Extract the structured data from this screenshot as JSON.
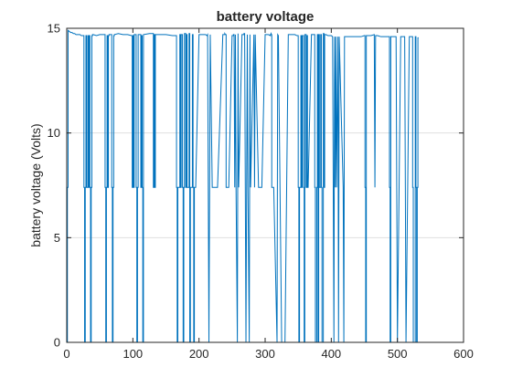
{
  "chart_data": {
    "type": "line",
    "title": "battery voltage",
    "xlabel": "",
    "ylabel": "battery voltage (Volts)",
    "xlim": [
      0,
      600
    ],
    "ylim": [
      0,
      15
    ],
    "xticks": [
      0,
      100,
      200,
      300,
      400,
      500,
      600
    ],
    "yticks": [
      0,
      5,
      10,
      15
    ],
    "grid": true,
    "series_color": "#0072bd",
    "grid_color": "#dfdfdf",
    "axis_color": "#262626",
    "series": [
      {
        "x": [
          0,
          1,
          1,
          2,
          2,
          4,
          6,
          8,
          10,
          12,
          14,
          16,
          18,
          20,
          22,
          24,
          26,
          26,
          27,
          27,
          28,
          28,
          29,
          29,
          30,
          30,
          31,
          32,
          32,
          33,
          33,
          34,
          34,
          35,
          35,
          36,
          36,
          37,
          37,
          38,
          38,
          39,
          39,
          40,
          45,
          50,
          55,
          58,
          58,
          59,
          59,
          60,
          60,
          61,
          61,
          62,
          62,
          63,
          63,
          64,
          64,
          68,
          68,
          69,
          69,
          70,
          70,
          71,
          71,
          72,
          72,
          78,
          85,
          92,
          98,
          99,
          99,
          100,
          100,
          101,
          101,
          102,
          102,
          105,
          105,
          106,
          106,
          107,
          107,
          108,
          108,
          112,
          112,
          113,
          113,
          114,
          114,
          115,
          115,
          116,
          116,
          125,
          130,
          131,
          131,
          132,
          132,
          133,
          133,
          134,
          134,
          140,
          150,
          160,
          165,
          166,
          166,
          167,
          167,
          168,
          168,
          171,
          171,
          172,
          172,
          173,
          173,
          175,
          175,
          176,
          176,
          177,
          177,
          178,
          178,
          180,
          180,
          181,
          181,
          182,
          182,
          185,
          185,
          186,
          186,
          187,
          187,
          190,
          190,
          191,
          191,
          192,
          192,
          193,
          193,
          195,
          200,
          205,
          210,
          212,
          212,
          213,
          213,
          214,
          214,
          215,
          215,
          216,
          216,
          217,
          217,
          220,
          228,
          236,
          239,
          239,
          240,
          240,
          241,
          241,
          245,
          250,
          252,
          252,
          253,
          253,
          254,
          254,
          255,
          255,
          256,
          256,
          258,
          258,
          259,
          259,
          260,
          260,
          265,
          268,
          268,
          269,
          269,
          270,
          270,
          271,
          271,
          272,
          272,
          273,
          273,
          274,
          274,
          276,
          276,
          277,
          277,
          278,
          278,
          283,
          283,
          284,
          284,
          285,
          285,
          290,
          295,
          300,
          305,
          308,
          308,
          309,
          309,
          310,
          310,
          313,
          318,
          318,
          319,
          319,
          320,
          320,
          325,
          330,
          335,
          340,
          345,
          348,
          348,
          349,
          349,
          350,
          350,
          351,
          351,
          352,
          352,
          354,
          354,
          355,
          355,
          356,
          356,
          358,
          358,
          359,
          359,
          360,
          360,
          362,
          362,
          363,
          363,
          364,
          364,
          365,
          370,
          374,
          374,
          375,
          375,
          376,
          376,
          378,
          378,
          379,
          379,
          380,
          380,
          381,
          381,
          382,
          382,
          384,
          384,
          385,
          385,
          386,
          386,
          388,
          388,
          389,
          389,
          390,
          390,
          392,
          395,
          400,
          402,
          402,
          403,
          403,
          404,
          404,
          405,
          405,
          406,
          406,
          407,
          407,
          408,
          408,
          410,
          410,
          411,
          411,
          412,
          412,
          418,
          418,
          419,
          419,
          420,
          420,
          425,
          430,
          435,
          440,
          445,
          450,
          451,
          451,
          452,
          452,
          453,
          453,
          460,
          465,
          465,
          466,
          466,
          467,
          467,
          470,
          475,
          480,
          485,
          488,
          488,
          489,
          489,
          490,
          490,
          495,
          498,
          498,
          499,
          499,
          500,
          500,
          505,
          510,
          511,
          511,
          512,
          512,
          513,
          513,
          518,
          522,
          522,
          523,
          523,
          524,
          524,
          527,
          527,
          528,
          528,
          529,
          529,
          530,
          530,
          531,
          531,
          532
        ],
        "y": [
          0,
          0,
          7.4,
          7.4,
          14.9,
          14.85,
          14.8,
          14.8,
          14.75,
          14.75,
          14.7,
          14.7,
          14.7,
          14.7,
          14.65,
          14.65,
          14.65,
          7.4,
          7.4,
          0,
          0,
          7.4,
          7.4,
          14.65,
          14.65,
          7.4,
          7.4,
          7.4,
          14.65,
          14.65,
          7.4,
          7.4,
          14.65,
          14.65,
          7.4,
          7.4,
          0,
          0,
          7.4,
          7.4,
          14.65,
          14.65,
          14.7,
          14.7,
          14.65,
          14.7,
          14.7,
          14.7,
          7.4,
          7.4,
          0,
          0,
          7.4,
          7.4,
          14.65,
          14.65,
          7.4,
          7.4,
          14.65,
          14.65,
          14.7,
          14.7,
          7.4,
          7.4,
          0,
          0,
          7.4,
          7.4,
          14.65,
          14.65,
          14.7,
          14.75,
          14.7,
          14.7,
          14.65,
          14.65,
          7.4,
          7.4,
          14.65,
          14.65,
          7.4,
          7.4,
          14.7,
          14.7,
          7.4,
          7.4,
          0,
          0,
          7.4,
          7.4,
          14.7,
          14.7,
          7.4,
          7.4,
          14.65,
          14.65,
          7.4,
          7.4,
          0,
          0,
          14.7,
          14.75,
          14.75,
          14.75,
          7.4,
          7.4,
          14.7,
          14.7,
          7.4,
          7.4,
          14.7,
          14.7,
          14.7,
          14.65,
          14.65,
          14.65,
          7.4,
          7.4,
          0,
          0,
          7.4,
          7.4,
          14.7,
          14.7,
          7.4,
          7.4,
          14.7,
          14.7,
          7.4,
          7.4,
          0,
          0,
          7.4,
          7.4,
          14.75,
          14.75,
          7.4,
          7.4,
          14.7,
          14.7,
          7.4,
          7.4,
          14.75,
          14.75,
          0,
          0,
          7.4,
          7.4,
          14.7,
          14.7,
          7.4,
          7.4,
          0,
          0,
          7.4,
          7.4,
          14.7,
          14.7,
          14.7,
          14.65,
          14.65,
          14.7,
          14.7,
          7.4,
          7.4,
          0,
          0,
          7.4,
          7.4,
          14.7,
          14.7,
          7.4,
          7.4,
          14.7,
          14.7,
          14.75,
          14.7,
          14.7,
          14.7,
          7.4,
          7.4,
          14.65,
          14.65,
          14.7,
          14.7,
          14.7,
          7.4,
          7.4,
          14.7,
          14.7,
          7.4,
          7.4,
          0,
          0,
          14.75,
          14.75,
          7.4,
          7.4,
          14.7,
          14.7,
          14.75,
          14.75,
          14.75,
          7.4,
          7.4,
          0,
          0,
          7.4,
          7.4,
          14.7,
          14.7,
          7.4,
          7.4,
          0,
          0,
          14.7,
          14.7,
          7.4,
          7.4,
          14.7,
          14.7,
          7.4,
          7.4,
          14.7,
          14.7,
          7.4,
          7.4,
          14.7,
          14.7,
          14.65,
          14.7,
          14.75,
          14.7,
          14.7,
          7.4,
          7.4,
          0,
          0,
          14.7,
          14.7,
          14.65,
          14.65,
          0,
          0,
          14.7,
          14.7,
          14.7,
          14.65,
          14.65,
          14.65,
          14.65,
          14.65,
          7.4,
          7.4,
          0,
          0,
          7.4,
          7.4,
          14.65,
          14.65,
          7.4,
          7.4,
          14.65,
          14.65,
          7.4,
          7.4,
          0,
          0,
          14.7,
          14.7,
          7.4,
          7.4,
          14.65,
          14.65,
          7.4,
          7.4,
          14.7,
          14.7,
          14.7,
          14.7,
          7.4,
          7.4,
          0,
          0,
          7.4,
          7.4,
          14.7,
          14.7,
          0,
          0,
          14.7,
          14.7,
          7.4,
          7.4,
          14.7,
          14.7,
          7.4,
          7.4,
          0,
          0,
          14.75,
          14.75,
          7.4,
          7.4,
          14.7,
          14.7,
          14.65,
          14.65,
          14.6,
          14.6,
          7.4,
          7.4,
          0,
          0,
          14.6,
          14.6,
          7.4,
          7.4,
          14.6,
          14.6,
          7.4,
          7.4,
          14.6,
          14.6,
          0,
          0,
          14.6,
          14.6,
          7.4,
          7.4,
          0,
          0,
          14.6,
          14.6,
          14.6,
          14.6,
          14.6,
          14.6,
          14.6,
          14.65,
          14.65,
          7.4,
          7.4,
          0,
          0,
          14.65,
          14.65,
          14.7,
          14.7,
          7.4,
          7.4,
          14.65,
          14.65,
          14.65,
          14.6,
          14.6,
          14.6,
          14.6,
          7.4,
          7.4,
          0,
          0,
          14.6,
          14.6,
          14.6,
          14.6,
          7.4,
          7.4,
          0,
          0,
          14.6,
          14.6,
          14.6,
          14.6,
          7.4,
          7.4,
          0,
          0,
          14.6,
          14.6,
          14.6,
          14.6,
          7.4,
          7.4,
          0,
          0,
          14.6,
          14.6,
          7.4,
          7.4,
          0,
          0,
          7.4,
          7.4,
          14.55,
          14.55
        ]
      }
    ]
  }
}
